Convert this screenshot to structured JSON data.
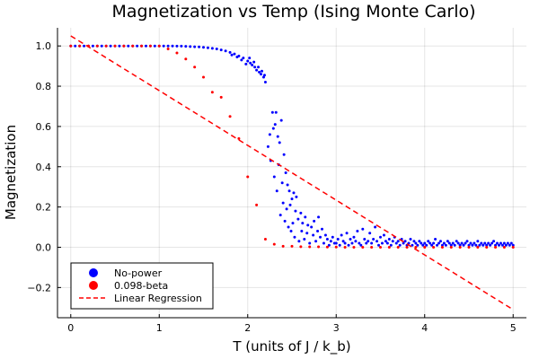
{
  "chart_data": {
    "type": "scatter",
    "title": "Magnetization vs Temp (Ising Monte Carlo)",
    "xlabel": "T (units of J / k_b)",
    "ylabel": "Magnetization",
    "xlim": [
      -0.15,
      5.15
    ],
    "ylim": [
      -0.35,
      1.09
    ],
    "x_ticks": [
      0,
      1,
      2,
      3,
      4,
      5
    ],
    "x_tick_labels": [
      "0",
      "1",
      "2",
      "3",
      "4",
      "5"
    ],
    "y_ticks": [
      -0.2,
      0.0,
      0.2,
      0.4,
      0.6,
      0.8,
      1.0
    ],
    "y_tick_labels": [
      "−0.2",
      "0.0",
      "0.2",
      "0.4",
      "0.6",
      "0.8",
      "1.0"
    ],
    "grid": true,
    "legend_position": "bottom-left",
    "legend": [
      "No-power",
      "0.098-beta",
      "Linear Regression"
    ],
    "colors": {
      "no_power": "#0000ff",
      "beta": "#ff0000",
      "regression": "#ff0000"
    },
    "series": [
      {
        "name": "No-power",
        "type": "scatter",
        "color": "#0000ff",
        "points": [
          [
            0.0,
            1.0
          ],
          [
            0.05,
            1.0
          ],
          [
            0.1,
            1.0
          ],
          [
            0.15,
            1.0
          ],
          [
            0.2,
            1.0
          ],
          [
            0.25,
            1.0
          ],
          [
            0.3,
            1.0
          ],
          [
            0.35,
            1.0
          ],
          [
            0.4,
            1.0
          ],
          [
            0.45,
            1.0
          ],
          [
            0.5,
            1.0
          ],
          [
            0.55,
            1.0
          ],
          [
            0.6,
            1.0
          ],
          [
            0.65,
            1.0
          ],
          [
            0.7,
            1.0
          ],
          [
            0.75,
            1.0
          ],
          [
            0.8,
            1.0
          ],
          [
            0.85,
            1.0
          ],
          [
            0.9,
            1.0
          ],
          [
            0.95,
            1.0
          ],
          [
            1.0,
            1.0
          ],
          [
            1.05,
            1.0
          ],
          [
            1.1,
            1.0
          ],
          [
            1.15,
            1.0
          ],
          [
            1.2,
            0.999
          ],
          [
            1.25,
            0.999
          ],
          [
            1.3,
            0.998
          ],
          [
            1.35,
            0.997
          ],
          [
            1.4,
            0.996
          ],
          [
            1.45,
            0.995
          ],
          [
            1.5,
            0.993
          ],
          [
            1.55,
            0.991
          ],
          [
            1.6,
            0.988
          ],
          [
            1.65,
            0.985
          ],
          [
            1.7,
            0.98
          ],
          [
            1.75,
            0.975
          ],
          [
            1.8,
            0.968
          ],
          [
            1.85,
            0.96
          ],
          [
            1.9,
            0.95
          ],
          [
            1.95,
            0.94
          ],
          [
            2.0,
            0.925
          ],
          [
            2.03,
            0.915
          ],
          [
            2.05,
            0.905
          ],
          [
            2.08,
            0.895
          ],
          [
            2.1,
            0.88
          ],
          [
            2.13,
            0.87
          ],
          [
            2.15,
            0.86
          ],
          [
            2.18,
            0.845
          ],
          [
            2.2,
            0.82
          ],
          [
            2.02,
            0.94
          ],
          [
            2.07,
            0.92
          ],
          [
            1.82,
            0.955
          ],
          [
            1.88,
            0.945
          ],
          [
            1.93,
            0.93
          ],
          [
            1.98,
            0.91
          ],
          [
            2.12,
            0.895
          ],
          [
            2.16,
            0.875
          ],
          [
            2.19,
            0.855
          ],
          [
            2.23,
            0.5
          ],
          [
            2.25,
            0.56
          ],
          [
            2.26,
            0.43
          ],
          [
            2.28,
            0.67
          ],
          [
            2.29,
            0.59
          ],
          [
            2.3,
            0.35
          ],
          [
            2.31,
            0.61
          ],
          [
            2.32,
            0.67
          ],
          [
            2.33,
            0.28
          ],
          [
            2.34,
            0.55
          ],
          [
            2.35,
            0.41
          ],
          [
            2.36,
            0.52
          ],
          [
            2.37,
            0.16
          ],
          [
            2.38,
            0.63
          ],
          [
            2.39,
            0.32
          ],
          [
            2.4,
            0.22
          ],
          [
            2.41,
            0.46
          ],
          [
            2.42,
            0.13
          ],
          [
            2.43,
            0.37
          ],
          [
            2.44,
            0.19
          ],
          [
            2.45,
            0.31
          ],
          [
            2.46,
            0.1
          ],
          [
            2.47,
            0.28
          ],
          [
            2.48,
            0.21
          ],
          [
            2.49,
            0.08
          ],
          [
            2.5,
            0.24
          ],
          [
            2.51,
            0.12
          ],
          [
            2.52,
            0.27
          ],
          [
            2.53,
            0.05
          ],
          [
            2.54,
            0.18
          ],
          [
            2.55,
            0.25
          ],
          [
            2.57,
            0.14
          ],
          [
            2.58,
            0.03
          ],
          [
            2.6,
            0.17
          ],
          [
            2.61,
            0.08
          ],
          [
            2.62,
            0.12
          ],
          [
            2.64,
            0.04
          ],
          [
            2.65,
            0.15
          ],
          [
            2.67,
            0.07
          ],
          [
            2.68,
            0.11
          ],
          [
            2.7,
            0.02
          ],
          [
            2.72,
            0.1
          ],
          [
            2.74,
            0.06
          ],
          [
            2.75,
            0.13
          ],
          [
            2.77,
            0.03
          ],
          [
            2.79,
            0.08
          ],
          [
            2.8,
            0.15
          ],
          [
            2.82,
            0.05
          ],
          [
            2.84,
            0.09
          ],
          [
            2.86,
            0.02
          ],
          [
            2.88,
            0.06
          ],
          [
            2.9,
            0.04
          ],
          [
            2.92,
            0.01
          ],
          [
            2.94,
            0.03
          ],
          [
            2.96,
            0.05
          ],
          [
            2.98,
            0.02
          ],
          [
            3.0,
            0.02
          ],
          [
            3.02,
            0.04
          ],
          [
            3.04,
            0.01
          ],
          [
            3.06,
            0.06
          ],
          [
            3.08,
            0.03
          ],
          [
            3.1,
            0.02
          ],
          [
            3.12,
            0.07
          ],
          [
            3.14,
            0.01
          ],
          [
            3.16,
            0.04
          ],
          [
            3.18,
            0.02
          ],
          [
            3.2,
            0.05
          ],
          [
            3.22,
            0.03
          ],
          [
            3.24,
            0.08
          ],
          [
            3.26,
            0.02
          ],
          [
            3.28,
            0.01
          ],
          [
            3.3,
            0.09
          ],
          [
            3.32,
            0.04
          ],
          [
            3.34,
            0.02
          ],
          [
            3.36,
            0.03
          ],
          [
            3.38,
            0.07
          ],
          [
            3.4,
            0.02
          ],
          [
            3.42,
            0.04
          ],
          [
            3.44,
            0.1
          ],
          [
            3.46,
            0.03
          ],
          [
            3.48,
            0.01
          ],
          [
            3.5,
            0.05
          ],
          [
            3.52,
            0.02
          ],
          [
            3.54,
            0.06
          ],
          [
            3.56,
            0.03
          ],
          [
            3.58,
            0.02
          ],
          [
            3.6,
            0.04
          ],
          [
            3.62,
            0.01
          ],
          [
            3.64,
            0.03
          ],
          [
            3.66,
            0.05
          ],
          [
            3.68,
            0.02
          ],
          [
            3.7,
            0.03
          ],
          [
            3.72,
            0.01
          ],
          [
            3.74,
            0.04
          ],
          [
            3.76,
            0.02
          ],
          [
            3.78,
            0.03
          ],
          [
            3.8,
            0.01
          ],
          [
            3.82,
            0.02
          ],
          [
            3.84,
            0.04
          ],
          [
            3.86,
            0.01
          ],
          [
            3.88,
            0.03
          ],
          [
            3.9,
            0.02
          ],
          [
            3.92,
            0.01
          ],
          [
            3.94,
            0.03
          ],
          [
            3.96,
            0.02
          ],
          [
            3.98,
            0.01
          ],
          [
            4.0,
            0.02
          ],
          [
            4.02,
            0.01
          ],
          [
            4.04,
            0.03
          ],
          [
            4.06,
            0.02
          ],
          [
            4.08,
            0.01
          ],
          [
            4.1,
            0.02
          ],
          [
            4.12,
            0.04
          ],
          [
            4.14,
            0.01
          ],
          [
            4.16,
            0.02
          ],
          [
            4.18,
            0.03
          ],
          [
            4.2,
            0.01
          ],
          [
            4.22,
            0.02
          ],
          [
            4.24,
            0.01
          ],
          [
            4.26,
            0.03
          ],
          [
            4.28,
            0.02
          ],
          [
            4.3,
            0.01
          ],
          [
            4.32,
            0.02
          ],
          [
            4.34,
            0.01
          ],
          [
            4.36,
            0.03
          ],
          [
            4.38,
            0.02
          ],
          [
            4.4,
            0.01
          ],
          [
            4.42,
            0.02
          ],
          [
            4.44,
            0.01
          ],
          [
            4.46,
            0.02
          ],
          [
            4.48,
            0.03
          ],
          [
            4.5,
            0.01
          ],
          [
            4.52,
            0.02
          ],
          [
            4.54,
            0.01
          ],
          [
            4.56,
            0.02
          ],
          [
            4.58,
            0.01
          ],
          [
            4.6,
            0.03
          ],
          [
            4.62,
            0.01
          ],
          [
            4.64,
            0.02
          ],
          [
            4.66,
            0.01
          ],
          [
            4.68,
            0.02
          ],
          [
            4.7,
            0.01
          ],
          [
            4.72,
            0.02
          ],
          [
            4.74,
            0.01
          ],
          [
            4.76,
            0.02
          ],
          [
            4.78,
            0.03
          ],
          [
            4.8,
            0.01
          ],
          [
            4.82,
            0.02
          ],
          [
            4.84,
            0.01
          ],
          [
            4.86,
            0.02
          ],
          [
            4.88,
            0.01
          ],
          [
            4.9,
            0.02
          ],
          [
            4.92,
            0.01
          ],
          [
            4.94,
            0.02
          ],
          [
            4.96,
            0.01
          ],
          [
            4.98,
            0.02
          ],
          [
            5.0,
            0.01
          ]
        ]
      },
      {
        "name": "0.098-beta",
        "type": "scatter",
        "color": "#ff0000",
        "points": [
          [
            0.0,
            1.0
          ],
          [
            0.1,
            1.0
          ],
          [
            0.2,
            1.0
          ],
          [
            0.3,
            1.0
          ],
          [
            0.4,
            1.0
          ],
          [
            0.5,
            1.0
          ],
          [
            0.6,
            1.0
          ],
          [
            0.7,
            1.0
          ],
          [
            0.8,
            1.0
          ],
          [
            0.9,
            1.0
          ],
          [
            1.0,
            1.0
          ],
          [
            1.1,
            0.985
          ],
          [
            1.2,
            0.965
          ],
          [
            1.3,
            0.935
          ],
          [
            1.4,
            0.895
          ],
          [
            1.5,
            0.845
          ],
          [
            1.6,
            0.77
          ],
          [
            1.7,
            0.745
          ],
          [
            1.8,
            0.65
          ],
          [
            1.9,
            0.54
          ],
          [
            2.0,
            0.35
          ],
          [
            2.1,
            0.21
          ],
          [
            2.2,
            0.04
          ],
          [
            2.3,
            0.015
          ],
          [
            2.4,
            0.005
          ],
          [
            2.5,
            0.005
          ],
          [
            2.6,
            0.003
          ],
          [
            2.7,
            0.002
          ],
          [
            2.8,
            0.002
          ],
          [
            2.9,
            0.001
          ],
          [
            3.0,
            0.001
          ],
          [
            3.1,
            0.0
          ],
          [
            3.2,
            0.0
          ],
          [
            3.3,
            0.0
          ],
          [
            3.4,
            0.0
          ],
          [
            3.5,
            0.0
          ],
          [
            3.6,
            0.0
          ],
          [
            3.7,
            0.0
          ],
          [
            3.8,
            0.0
          ],
          [
            3.9,
            0.0
          ],
          [
            4.0,
            0.0
          ],
          [
            4.1,
            0.0
          ],
          [
            4.2,
            0.0
          ],
          [
            4.3,
            0.0
          ],
          [
            4.4,
            0.0
          ],
          [
            4.5,
            0.0
          ],
          [
            4.6,
            0.0
          ],
          [
            4.7,
            0.0
          ],
          [
            4.8,
            0.0
          ],
          [
            4.9,
            0.0
          ],
          [
            5.0,
            0.0
          ]
        ]
      },
      {
        "name": "Linear Regression",
        "type": "line",
        "style": "dashed",
        "color": "#ff0000",
        "points": [
          [
            0.0,
            1.05
          ],
          [
            5.0,
            -0.31
          ]
        ]
      }
    ]
  }
}
